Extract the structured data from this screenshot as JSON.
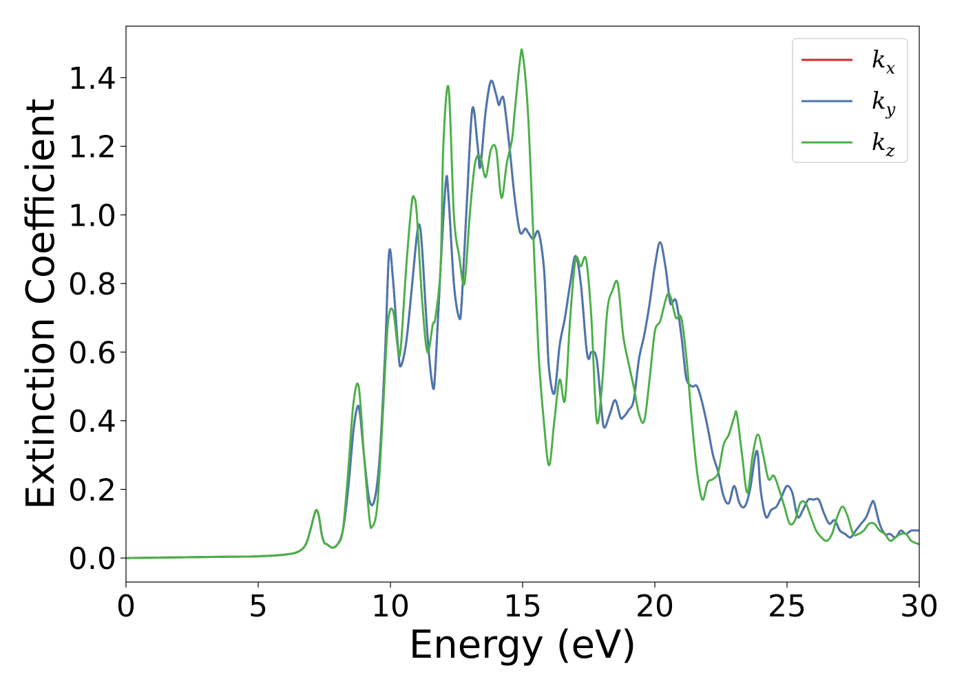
{
  "chart_data": {
    "type": "line",
    "xlabel": "Energy (eV)",
    "ylabel": "Extinction Coefficient",
    "xlim": [
      0,
      30
    ],
    "ylim": [
      -0.07,
      1.55
    ],
    "xticks": [
      0,
      5,
      10,
      15,
      20,
      25,
      30
    ],
    "xtick_labels": [
      "0",
      "5",
      "10",
      "15",
      "20",
      "25",
      "30"
    ],
    "yticks": [
      0.0,
      0.2,
      0.4,
      0.6,
      0.8,
      1.0,
      1.2,
      1.4
    ],
    "ytick_labels": [
      "0.0",
      "0.2",
      "0.4",
      "0.6",
      "0.8",
      "1.0",
      "1.2",
      "1.4"
    ],
    "grid": false,
    "legend_position": "top-right",
    "series": [
      {
        "name": "k",
        "subscript": "x",
        "color": "#d62728",
        "x": [
          0,
          2,
          4,
          5,
          6,
          6.5,
          6.8,
          7.0,
          7.1,
          7.2,
          7.3,
          7.4,
          7.5,
          7.6,
          7.8,
          8.0,
          8.2,
          8.4,
          8.6,
          8.75,
          8.85,
          9.0,
          9.2,
          9.4,
          9.6,
          9.8,
          9.95,
          10.1,
          10.3,
          10.4,
          10.6,
          10.8,
          11.0,
          11.1,
          11.2,
          11.4,
          11.6,
          11.7,
          11.9,
          12.1,
          12.2,
          12.4,
          12.6,
          12.7,
          12.9,
          13.1,
          13.3,
          13.4,
          13.6,
          13.8,
          14.0,
          14.1,
          14.2,
          14.3,
          14.5,
          14.7,
          14.9,
          15.1,
          15.2,
          15.4,
          15.6,
          15.8,
          15.9,
          16.0,
          16.2,
          16.4,
          16.6,
          16.8,
          17.0,
          17.2,
          17.4,
          17.5,
          17.6,
          17.8,
          18.0,
          18.1,
          18.3,
          18.5,
          18.7,
          18.8,
          19.0,
          19.2,
          19.4,
          19.6,
          19.8,
          20.0,
          20.2,
          20.4,
          20.5,
          20.6,
          20.8,
          21.0,
          21.1,
          21.2,
          21.4,
          21.6,
          21.8,
          22.0,
          22.2,
          22.4,
          22.6,
          22.8,
          23.0,
          23.2,
          23.4,
          23.6,
          23.8,
          23.9,
          24.0,
          24.2,
          24.4,
          24.6,
          24.8,
          25.0,
          25.2,
          25.4,
          25.6,
          25.8,
          26.0,
          26.2,
          26.4,
          26.6,
          26.8,
          27.0,
          27.2,
          27.4,
          27.6,
          27.8,
          28.0,
          28.2,
          28.3,
          28.5,
          28.7,
          28.9,
          29.1,
          29.3,
          29.5,
          29.7,
          30.0
        ],
        "y": [
          0.0,
          0.002,
          0.004,
          0.005,
          0.01,
          0.018,
          0.04,
          0.09,
          0.12,
          0.14,
          0.12,
          0.07,
          0.045,
          0.04,
          0.03,
          0.04,
          0.08,
          0.2,
          0.37,
          0.44,
          0.42,
          0.3,
          0.17,
          0.17,
          0.3,
          0.6,
          0.89,
          0.81,
          0.6,
          0.56,
          0.63,
          0.78,
          0.94,
          0.97,
          0.9,
          0.65,
          0.5,
          0.55,
          0.85,
          1.1,
          1.05,
          0.8,
          0.7,
          0.75,
          1.05,
          1.31,
          1.2,
          1.14,
          1.3,
          1.39,
          1.35,
          1.32,
          1.34,
          1.33,
          1.2,
          1.05,
          0.95,
          0.96,
          0.95,
          0.93,
          0.95,
          0.85,
          0.7,
          0.55,
          0.48,
          0.62,
          0.7,
          0.8,
          0.88,
          0.8,
          0.62,
          0.58,
          0.6,
          0.58,
          0.42,
          0.38,
          0.42,
          0.46,
          0.41,
          0.41,
          0.43,
          0.46,
          0.58,
          0.65,
          0.74,
          0.85,
          0.92,
          0.85,
          0.79,
          0.74,
          0.75,
          0.65,
          0.58,
          0.52,
          0.5,
          0.5,
          0.45,
          0.38,
          0.3,
          0.25,
          0.18,
          0.16,
          0.21,
          0.16,
          0.15,
          0.2,
          0.3,
          0.3,
          0.2,
          0.12,
          0.14,
          0.15,
          0.18,
          0.21,
          0.19,
          0.12,
          0.14,
          0.17,
          0.17,
          0.17,
          0.13,
          0.1,
          0.11,
          0.08,
          0.07,
          0.06,
          0.08,
          0.1,
          0.12,
          0.16,
          0.16,
          0.1,
          0.07,
          0.07,
          0.06,
          0.08,
          0.07,
          0.08,
          0.08
        ]
      },
      {
        "name": "k",
        "subscript": "y",
        "color": "#4a77b0",
        "x": [
          0,
          2,
          4,
          5,
          6,
          6.5,
          6.8,
          7.0,
          7.1,
          7.2,
          7.3,
          7.4,
          7.5,
          7.6,
          7.8,
          8.0,
          8.2,
          8.4,
          8.6,
          8.75,
          8.85,
          9.0,
          9.2,
          9.4,
          9.6,
          9.8,
          9.95,
          10.1,
          10.3,
          10.4,
          10.6,
          10.8,
          11.0,
          11.1,
          11.2,
          11.4,
          11.6,
          11.7,
          11.9,
          12.1,
          12.2,
          12.4,
          12.6,
          12.7,
          12.9,
          13.1,
          13.3,
          13.4,
          13.6,
          13.8,
          14.0,
          14.1,
          14.2,
          14.3,
          14.5,
          14.7,
          14.9,
          15.1,
          15.2,
          15.4,
          15.6,
          15.8,
          15.9,
          16.0,
          16.2,
          16.4,
          16.6,
          16.8,
          17.0,
          17.2,
          17.4,
          17.5,
          17.6,
          17.8,
          18.0,
          18.1,
          18.3,
          18.5,
          18.7,
          18.8,
          19.0,
          19.2,
          19.4,
          19.6,
          19.8,
          20.0,
          20.2,
          20.4,
          20.5,
          20.6,
          20.8,
          21.0,
          21.1,
          21.2,
          21.4,
          21.6,
          21.8,
          22.0,
          22.2,
          22.4,
          22.6,
          22.8,
          23.0,
          23.2,
          23.4,
          23.6,
          23.8,
          23.9,
          24.0,
          24.2,
          24.4,
          24.6,
          24.8,
          25.0,
          25.2,
          25.4,
          25.6,
          25.8,
          26.0,
          26.2,
          26.4,
          26.6,
          26.8,
          27.0,
          27.2,
          27.4,
          27.6,
          27.8,
          28.0,
          28.2,
          28.3,
          28.5,
          28.7,
          28.9,
          29.1,
          29.3,
          29.5,
          29.7,
          30.0
        ],
        "y": [
          0.0,
          0.002,
          0.004,
          0.005,
          0.01,
          0.018,
          0.04,
          0.09,
          0.12,
          0.14,
          0.12,
          0.07,
          0.045,
          0.04,
          0.03,
          0.04,
          0.08,
          0.2,
          0.37,
          0.44,
          0.42,
          0.3,
          0.17,
          0.17,
          0.3,
          0.6,
          0.89,
          0.81,
          0.6,
          0.56,
          0.63,
          0.78,
          0.94,
          0.97,
          0.9,
          0.65,
          0.5,
          0.55,
          0.85,
          1.1,
          1.05,
          0.8,
          0.7,
          0.75,
          1.05,
          1.31,
          1.2,
          1.14,
          1.3,
          1.39,
          1.35,
          1.32,
          1.34,
          1.33,
          1.2,
          1.05,
          0.95,
          0.96,
          0.95,
          0.93,
          0.95,
          0.85,
          0.7,
          0.55,
          0.48,
          0.62,
          0.7,
          0.8,
          0.88,
          0.8,
          0.62,
          0.58,
          0.6,
          0.58,
          0.42,
          0.38,
          0.42,
          0.46,
          0.41,
          0.41,
          0.43,
          0.46,
          0.58,
          0.65,
          0.74,
          0.85,
          0.92,
          0.85,
          0.79,
          0.74,
          0.75,
          0.65,
          0.58,
          0.52,
          0.5,
          0.5,
          0.45,
          0.38,
          0.3,
          0.25,
          0.18,
          0.16,
          0.21,
          0.16,
          0.15,
          0.2,
          0.3,
          0.3,
          0.2,
          0.12,
          0.14,
          0.15,
          0.18,
          0.21,
          0.19,
          0.12,
          0.14,
          0.17,
          0.17,
          0.17,
          0.13,
          0.1,
          0.11,
          0.08,
          0.07,
          0.06,
          0.08,
          0.1,
          0.12,
          0.16,
          0.16,
          0.1,
          0.07,
          0.07,
          0.06,
          0.08,
          0.07,
          0.08,
          0.08
        ]
      },
      {
        "name": "k",
        "subscript": "z",
        "color": "#4daf4a",
        "x": [
          0,
          2,
          4,
          5,
          6,
          6.5,
          6.8,
          7.0,
          7.1,
          7.2,
          7.3,
          7.4,
          7.5,
          7.6,
          7.8,
          8.0,
          8.2,
          8.4,
          8.6,
          8.8,
          9.0,
          9.2,
          9.3,
          9.5,
          9.7,
          9.9,
          10.1,
          10.3,
          10.4,
          10.6,
          10.8,
          10.9,
          11.0,
          11.2,
          11.4,
          11.6,
          11.7,
          11.9,
          12.0,
          12.2,
          12.4,
          12.6,
          12.8,
          13.0,
          13.2,
          13.4,
          13.6,
          13.8,
          14.0,
          14.2,
          14.4,
          14.6,
          14.7,
          14.9,
          15.0,
          15.2,
          15.4,
          15.6,
          15.8,
          16.0,
          16.2,
          16.4,
          16.6,
          16.8,
          17.0,
          17.2,
          17.4,
          17.6,
          17.8,
          18.0,
          18.2,
          18.4,
          18.6,
          18.8,
          19.0,
          19.2,
          19.4,
          19.6,
          19.8,
          20.0,
          20.2,
          20.4,
          20.5,
          20.6,
          20.8,
          21.0,
          21.2,
          21.4,
          21.6,
          21.8,
          22.0,
          22.2,
          22.4,
          22.6,
          22.8,
          23.0,
          23.1,
          23.3,
          23.5,
          23.7,
          23.9,
          24.1,
          24.3,
          24.5,
          24.7,
          24.9,
          25.1,
          25.3,
          25.5,
          25.7,
          25.9,
          26.1,
          26.3,
          26.5,
          26.7,
          26.9,
          27.1,
          27.3,
          27.5,
          27.7,
          27.9,
          28.1,
          28.3,
          28.5,
          28.7,
          28.9,
          29.1,
          29.3,
          29.5,
          29.7,
          30.0
        ],
        "y": [
          0.0,
          0.002,
          0.004,
          0.005,
          0.01,
          0.018,
          0.04,
          0.09,
          0.12,
          0.14,
          0.12,
          0.07,
          0.045,
          0.04,
          0.03,
          0.04,
          0.08,
          0.25,
          0.45,
          0.5,
          0.3,
          0.12,
          0.09,
          0.15,
          0.4,
          0.68,
          0.72,
          0.6,
          0.62,
          0.85,
          1.03,
          1.05,
          1.0,
          0.75,
          0.6,
          0.68,
          0.7,
          0.85,
          1.2,
          1.37,
          1.0,
          0.88,
          0.8,
          1.0,
          1.15,
          1.17,
          1.11,
          1.19,
          1.19,
          1.05,
          1.15,
          1.22,
          1.3,
          1.45,
          1.47,
          1.3,
          0.95,
          0.6,
          0.4,
          0.27,
          0.4,
          0.52,
          0.46,
          0.7,
          0.87,
          0.85,
          0.87,
          0.7,
          0.4,
          0.5,
          0.72,
          0.78,
          0.8,
          0.65,
          0.57,
          0.5,
          0.42,
          0.4,
          0.52,
          0.66,
          0.69,
          0.75,
          0.77,
          0.76,
          0.7,
          0.7,
          0.58,
          0.4,
          0.25,
          0.17,
          0.22,
          0.23,
          0.25,
          0.33,
          0.36,
          0.41,
          0.42,
          0.3,
          0.19,
          0.3,
          0.36,
          0.3,
          0.23,
          0.24,
          0.2,
          0.15,
          0.1,
          0.11,
          0.16,
          0.16,
          0.12,
          0.08,
          0.06,
          0.05,
          0.07,
          0.12,
          0.15,
          0.12,
          0.07,
          0.07,
          0.08,
          0.1,
          0.1,
          0.08,
          0.07,
          0.05,
          0.06,
          0.07,
          0.07,
          0.05,
          0.04
        ]
      }
    ]
  }
}
